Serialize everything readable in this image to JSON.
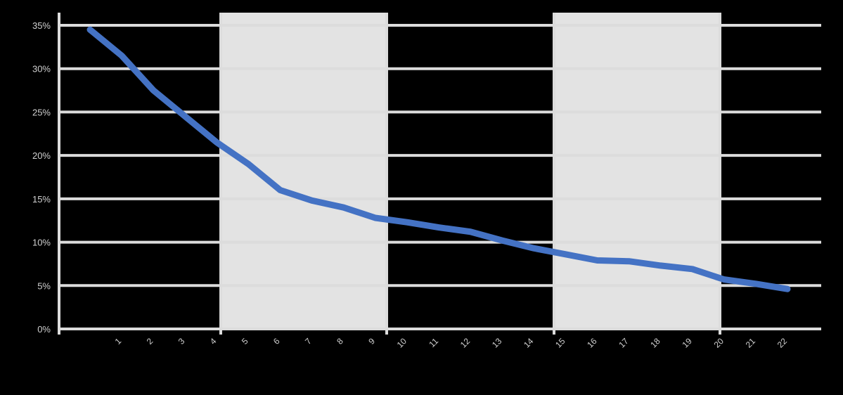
{
  "chart_data": {
    "type": "line",
    "title": "",
    "xlabel": "",
    "ylabel": "",
    "colors": {
      "background": "#000000",
      "plot_background": "#000000",
      "band": "#e3e3e3",
      "grid": "#dcdcdc",
      "series": "#4472c4",
      "text": "#d0d0d0"
    },
    "grid": true,
    "legend": "none",
    "y_ticks": [
      "0%",
      "5%",
      "10%",
      "15%",
      "20%",
      "25%",
      "30%",
      "35%"
    ],
    "ylim": [
      0,
      35
    ],
    "categories": [
      "",
      "1",
      "2",
      "3",
      "4",
      "5",
      "6",
      "7",
      "8",
      "9",
      "10",
      "11",
      "12",
      "13",
      "14",
      "15",
      "16",
      "17",
      "18",
      "19",
      "20",
      "21",
      "22"
    ],
    "series": [
      {
        "values": [
          34.5,
          31.5,
          27.5,
          24.5,
          21.5,
          19,
          16,
          14.8,
          14,
          12.8,
          12.3,
          11.7,
          11.2,
          10.2,
          9.3,
          8.6,
          7.9,
          7.8,
          7.3,
          6.9,
          5.7,
          5.2,
          4.6
        ]
      }
    ]
  }
}
